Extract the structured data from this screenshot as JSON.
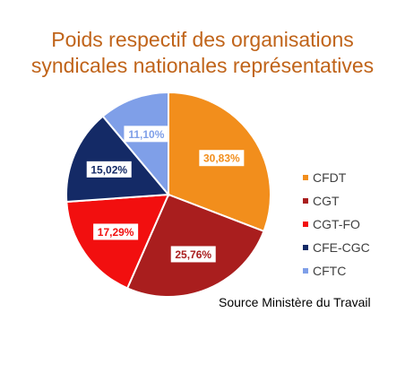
{
  "title_line1": "Poids respectif des organisations",
  "title_line2": "syndicales nationales représentatives",
  "source": "Source Ministère du Travail",
  "chart_data": {
    "type": "pie",
    "title": "Poids respectif des organisations syndicales nationales représentatives",
    "categories": [
      "CFDT",
      "CGT",
      "CGT-FO",
      "CFE-CGC",
      "CFTC"
    ],
    "values": [
      30.83,
      25.76,
      17.29,
      15.02,
      11.1
    ],
    "labels": [
      "30,83%",
      "25,76%",
      "17,29%",
      "15,02%",
      "11,10%"
    ],
    "colors": [
      "#f28e1c",
      "#a91e1e",
      "#f20f0f",
      "#142a66",
      "#7f9fe8"
    ],
    "label_text_colors": [
      "#f28e1c",
      "#a91e1e",
      "#f20f0f",
      "#142a66",
      "#7f9fe8"
    ],
    "legend_position": "right"
  }
}
